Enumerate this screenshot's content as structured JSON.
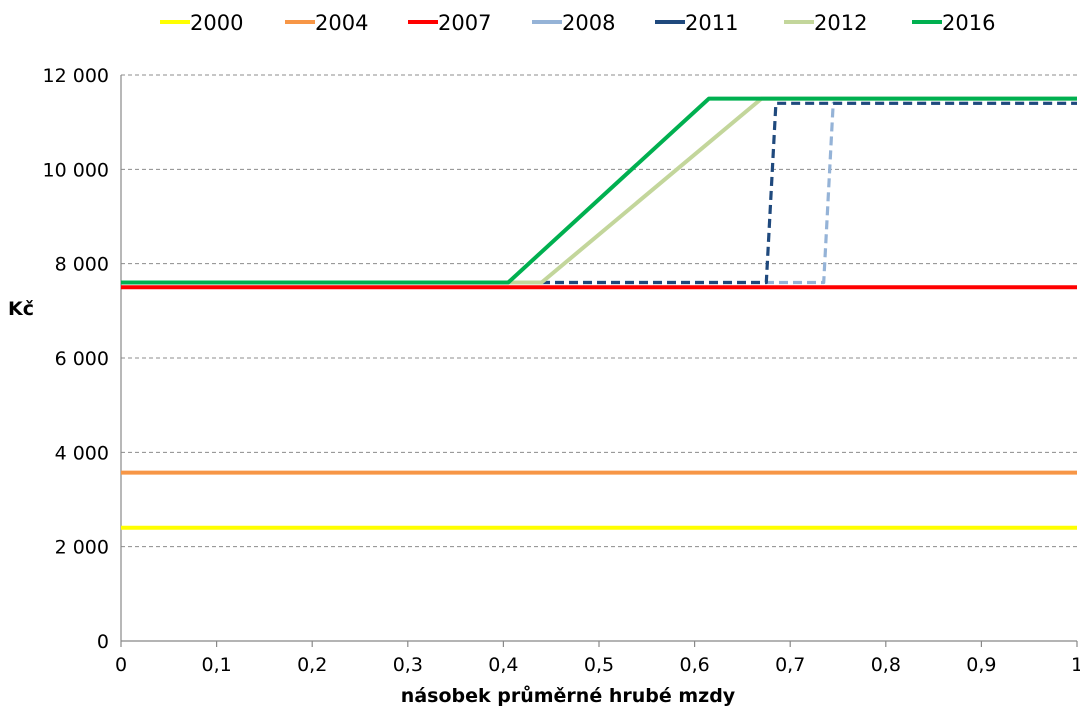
{
  "chart_data": {
    "type": "line",
    "xlabel": "násobek průměrné hrubé mzdy",
    "ylabel": "Kč",
    "xlim": [
      0,
      1
    ],
    "ylim": [
      0,
      12000
    ],
    "x_ticks": [
      {
        "value": 0,
        "label": "0"
      },
      {
        "value": 0.1,
        "label": "0,1"
      },
      {
        "value": 0.2,
        "label": "0,2"
      },
      {
        "value": 0.3,
        "label": "0,3"
      },
      {
        "value": 0.4,
        "label": "0,4"
      },
      {
        "value": 0.5,
        "label": "0,5"
      },
      {
        "value": 0.6,
        "label": "0,6"
      },
      {
        "value": 0.7,
        "label": "0,7"
      },
      {
        "value": 0.8,
        "label": "0,8"
      },
      {
        "value": 0.9,
        "label": "0,9"
      },
      {
        "value": 1,
        "label": "1"
      }
    ],
    "y_ticks": [
      {
        "value": 0,
        "label": "0"
      },
      {
        "value": 2000,
        "label": "2 000"
      },
      {
        "value": 4000,
        "label": "4 000"
      },
      {
        "value": 6000,
        "label": "6 000"
      },
      {
        "value": 8000,
        "label": "8 000"
      },
      {
        "value": 10000,
        "label": "10 000"
      },
      {
        "value": 12000,
        "label": "12 000"
      }
    ],
    "grid": "horizontal-dashed",
    "legend_position": "top",
    "series": [
      {
        "name": "2000",
        "color": "#ffff00",
        "style": "solid",
        "points": [
          [
            0,
            2400
          ],
          [
            1,
            2400
          ]
        ]
      },
      {
        "name": "2004",
        "color": "#f79646",
        "style": "solid",
        "points": [
          [
            0,
            3570
          ],
          [
            1,
            3570
          ]
        ]
      },
      {
        "name": "2007",
        "color": "#ff0000",
        "style": "solid",
        "points": [
          [
            0,
            7500
          ],
          [
            1,
            7500
          ]
        ]
      },
      {
        "name": "2008",
        "color": "#95b3d7",
        "style": "dashed",
        "points": [
          [
            0,
            7600
          ],
          [
            0.735,
            7600
          ],
          [
            0.745,
            11400
          ],
          [
            1,
            11400
          ]
        ]
      },
      {
        "name": "2011",
        "color": "#1f497d",
        "style": "dashed",
        "points": [
          [
            0,
            7600
          ],
          [
            0.675,
            7600
          ],
          [
            0.685,
            11400
          ],
          [
            1,
            11400
          ]
        ]
      },
      {
        "name": "2012",
        "color": "#c3d69b",
        "style": "solid",
        "points": [
          [
            0,
            7600
          ],
          [
            0.44,
            7600
          ],
          [
            0.67,
            11500
          ],
          [
            1,
            11500
          ]
        ]
      },
      {
        "name": "2016",
        "color": "#00b050",
        "style": "solid",
        "points": [
          [
            0,
            7600
          ],
          [
            0.405,
            7600
          ],
          [
            0.615,
            11500
          ],
          [
            1,
            11500
          ]
        ]
      }
    ]
  }
}
